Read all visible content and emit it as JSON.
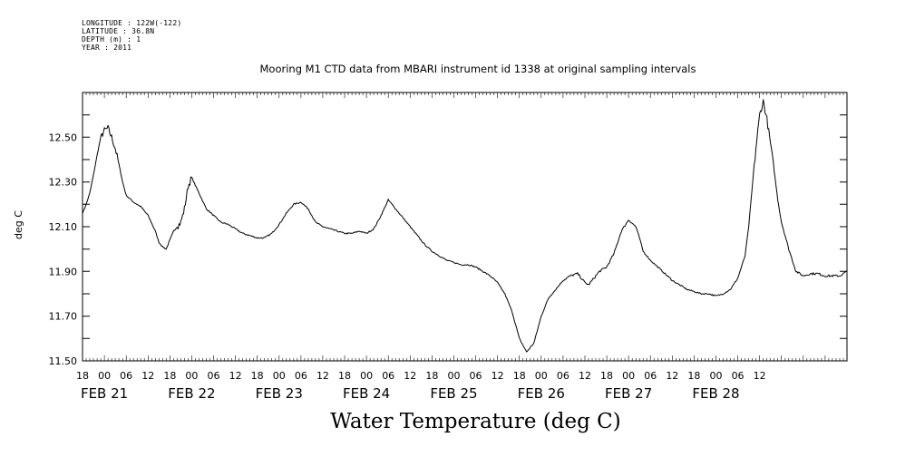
{
  "meta": {
    "longitude": "LONGITUDE : 122W(-122)",
    "latitude": "LATITUDE : 36.8N",
    "depth": "DEPTH (m) : 1",
    "year": "YEAR : 2011"
  },
  "chart_data": {
    "type": "line",
    "title": "Mooring M1 CTD data from MBARI instrument id 1338 at original sampling intervals",
    "xlabel": "Water Temperature (deg C)",
    "ylabel": "deg C",
    "ylim": [
      11.5,
      12.7
    ],
    "yticks": [
      "11.50",
      "11.70",
      "11.90",
      "12.10",
      "12.30",
      "12.50"
    ],
    "xlim_hours": [
      -6,
      204
    ],
    "hour_ticks": [
      "18",
      "00",
      "06",
      "12",
      "18",
      "00",
      "06",
      "12",
      "18",
      "00",
      "06",
      "12",
      "18",
      "00",
      "06",
      "12",
      "18",
      "00",
      "06",
      "12",
      "18",
      "00",
      "06",
      "12",
      "18",
      "00",
      "06",
      "12",
      "18",
      "00",
      "06",
      "12"
    ],
    "day_labels": [
      "FEB 21",
      "FEB 22",
      "FEB 23",
      "FEB 24",
      "FEB 25",
      "FEB 26",
      "FEB 27",
      "FEB 28"
    ],
    "x_unit": "hours since 00:00 FEB 21",
    "series": [
      {
        "x": [
          -6,
          -5,
          -4,
          -3,
          -2,
          -1,
          0,
          1,
          2,
          3,
          4,
          5,
          6,
          8,
          10,
          12,
          14,
          15,
          16,
          17,
          18,
          19,
          20,
          21,
          22,
          23,
          24,
          26,
          28,
          30,
          32,
          34,
          36,
          38,
          40,
          42,
          44,
          46,
          48,
          50,
          52,
          54,
          56,
          58,
          60,
          62,
          64,
          66,
          68,
          70,
          72,
          74,
          76,
          78,
          80,
          82,
          84,
          86,
          88,
          90,
          92,
          94,
          96,
          98,
          100,
          102,
          104,
          106,
          108,
          110,
          112,
          114,
          116,
          118,
          120,
          122,
          124,
          126,
          128,
          130,
          131,
          132,
          133,
          134,
          135,
          136,
          138,
          140,
          142,
          144,
          146,
          147,
          148,
          150,
          152,
          154,
          156,
          158,
          160,
          162,
          164,
          166,
          168,
          170,
          172,
          174,
          176,
          177,
          178,
          179,
          180,
          181,
          182,
          183,
          184,
          185,
          186,
          188,
          190,
          192,
          194,
          196,
          198,
          200,
          202,
          204
        ],
        "y": [
          12.16,
          12.2,
          12.25,
          12.33,
          12.42,
          12.5,
          12.53,
          12.54,
          12.5,
          12.45,
          12.38,
          12.3,
          12.24,
          12.21,
          12.19,
          12.15,
          12.08,
          12.03,
          12.01,
          12.0,
          12.04,
          12.08,
          12.1,
          12.12,
          12.18,
          12.28,
          12.32,
          12.25,
          12.18,
          12.15,
          12.12,
          12.11,
          12.09,
          12.07,
          12.06,
          12.05,
          12.05,
          12.07,
          12.11,
          12.16,
          12.2,
          12.21,
          12.18,
          12.12,
          12.1,
          12.09,
          12.08,
          12.07,
          12.07,
          12.08,
          12.07,
          12.09,
          12.15,
          12.22,
          12.18,
          12.14,
          12.1,
          12.06,
          12.02,
          11.99,
          11.97,
          11.95,
          11.94,
          11.93,
          11.93,
          11.92,
          11.9,
          11.88,
          11.85,
          11.8,
          11.72,
          11.6,
          11.54,
          11.58,
          11.7,
          11.78,
          11.82,
          11.86,
          11.88,
          11.89,
          11.87,
          11.85,
          11.84,
          11.86,
          11.88,
          11.9,
          11.92,
          11.98,
          12.08,
          12.13,
          12.1,
          12.05,
          11.99,
          11.95,
          11.92,
          11.89,
          11.86,
          11.84,
          11.82,
          11.81,
          11.8,
          11.8,
          11.79,
          11.8,
          11.82,
          11.87,
          11.97,
          12.1,
          12.28,
          12.45,
          12.6,
          12.66,
          12.58,
          12.47,
          12.35,
          12.22,
          12.12,
          12.0,
          11.9,
          11.88,
          11.89,
          11.89,
          11.88,
          11.88,
          11.88,
          11.9
        ]
      }
    ]
  }
}
